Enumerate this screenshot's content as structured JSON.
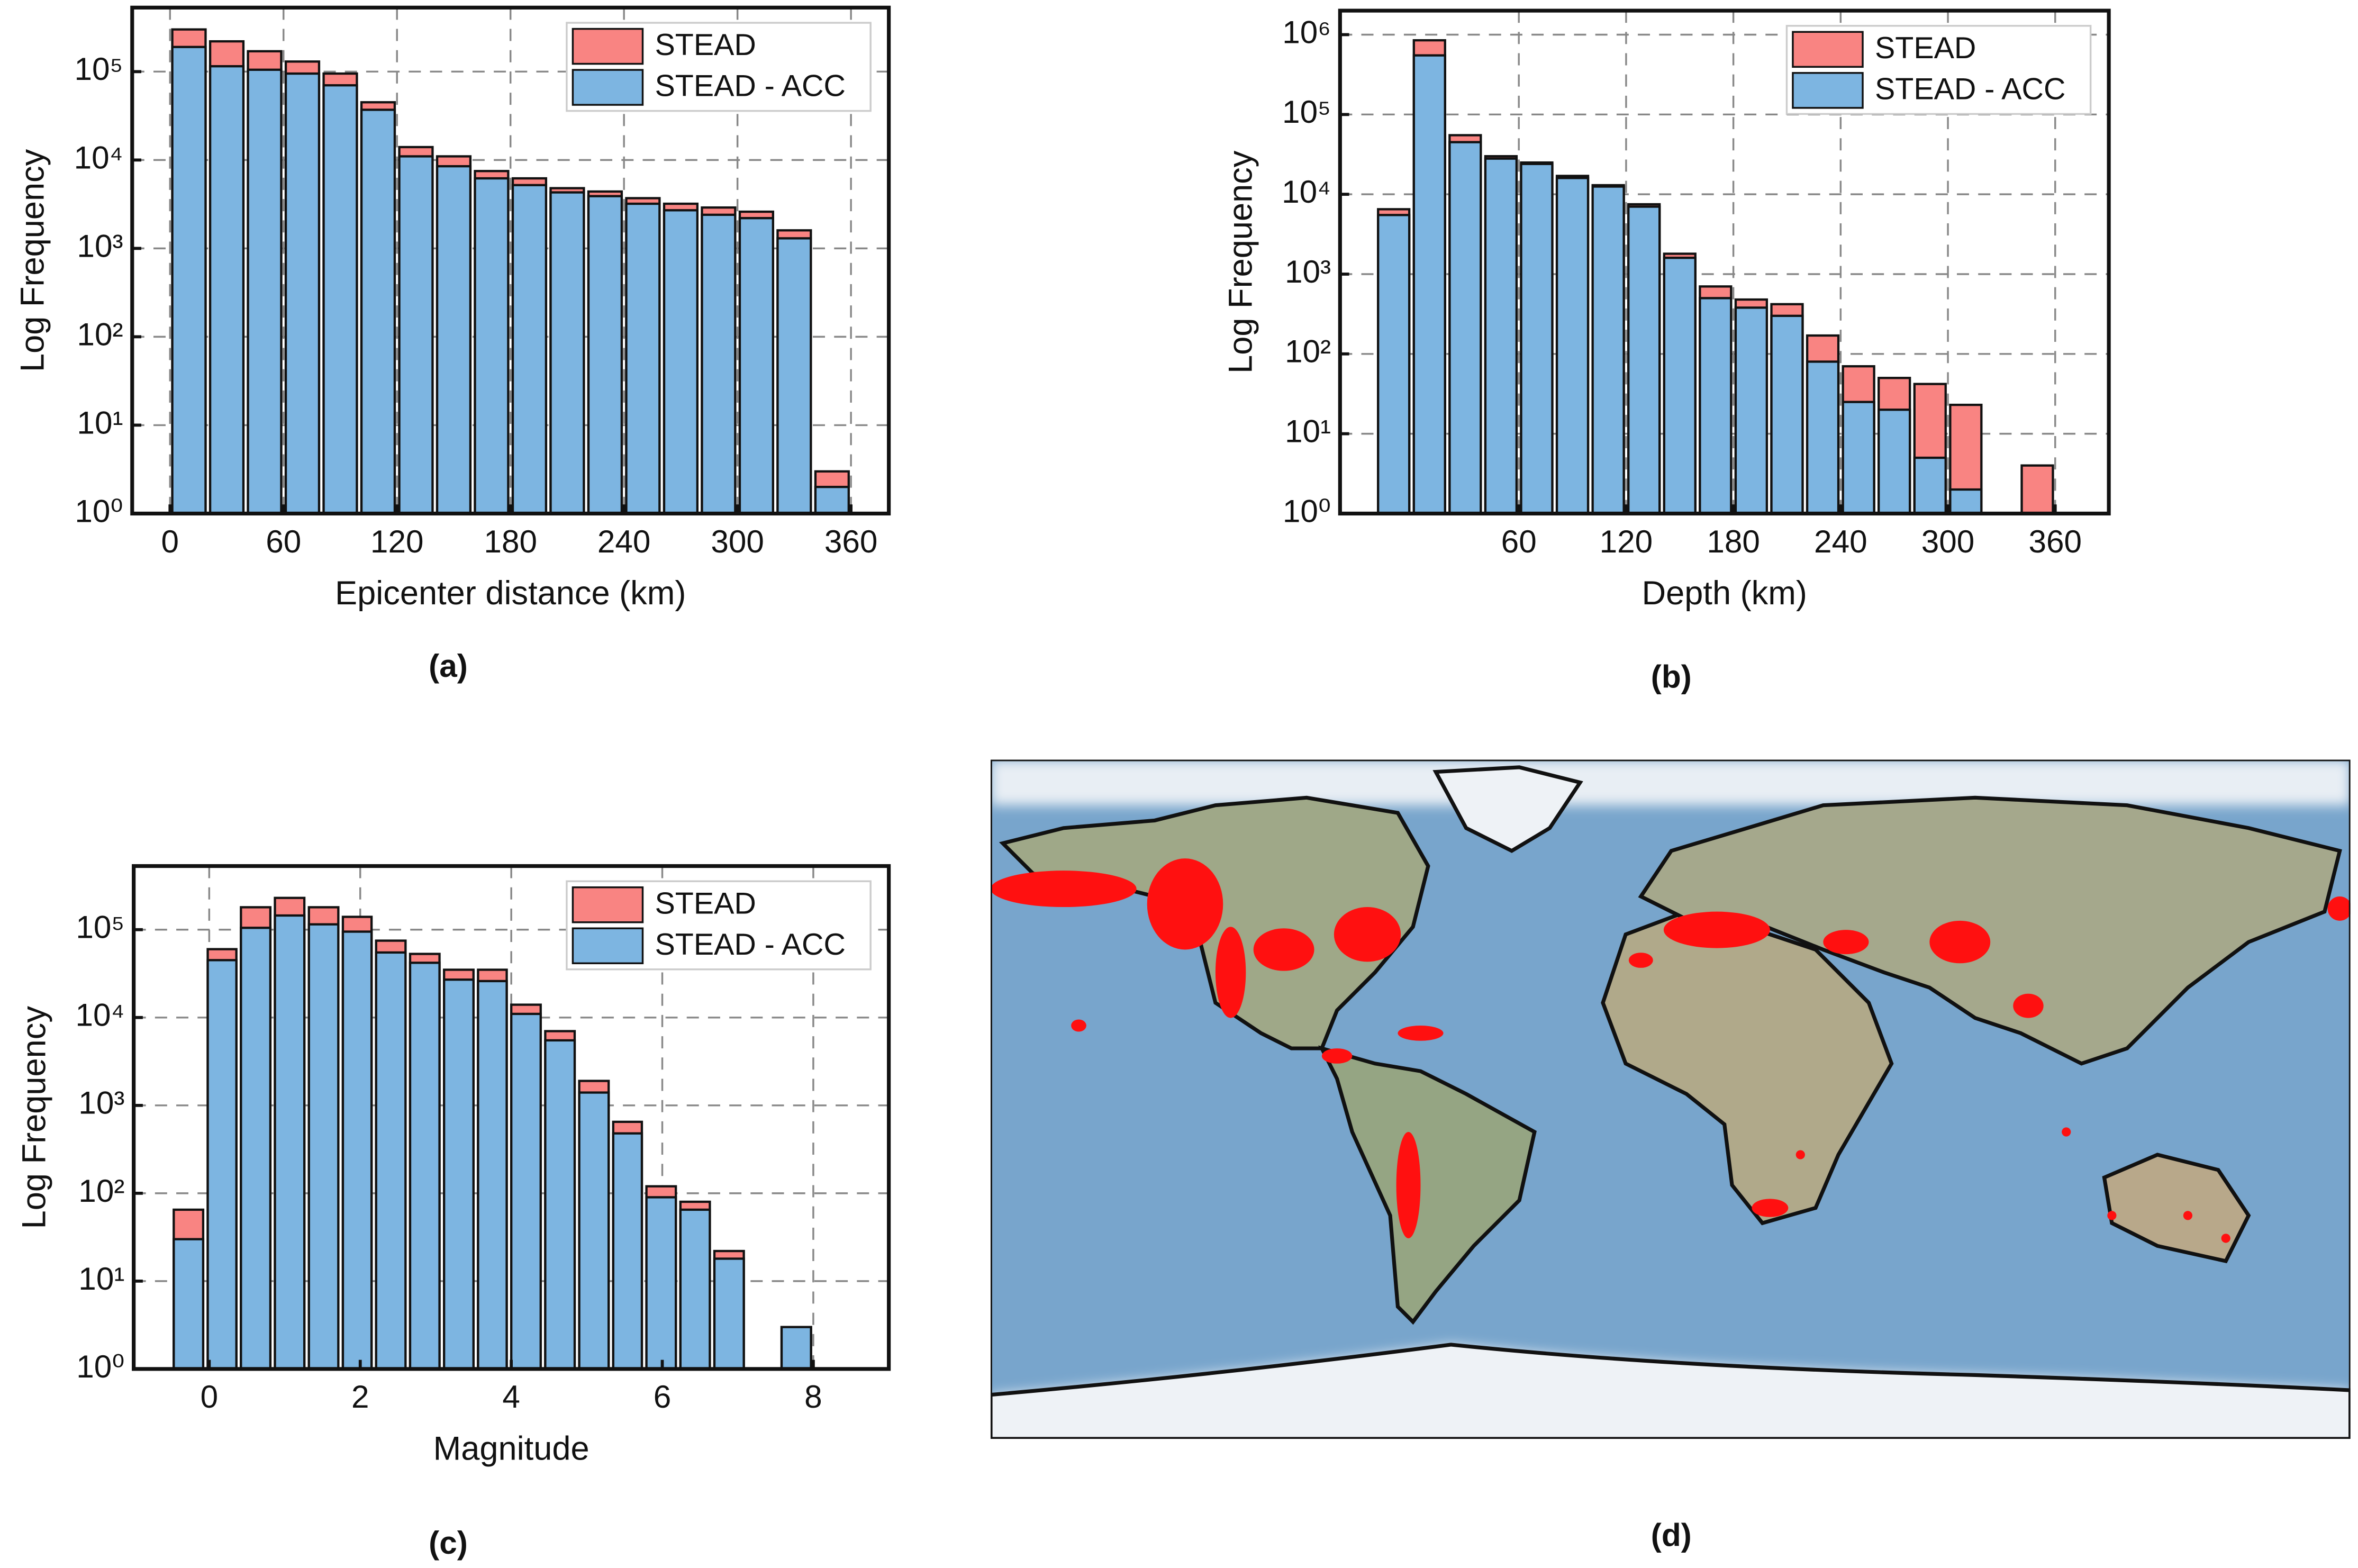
{
  "chart_data": [
    {
      "type": "histogram",
      "caption": "(a)",
      "xlabel": "Epicenter distance (km)",
      "ylabel": "Log Frequency",
      "bins": [
        0,
        20,
        40,
        60,
        80,
        100,
        120,
        140,
        160,
        180,
        200,
        220,
        240,
        260,
        280,
        300,
        320,
        340,
        360
      ],
      "series": [
        {
          "name": "STEAD",
          "color": "#f98482",
          "values": [
            300000,
            220000,
            170000,
            130000,
            95000,
            45000,
            14000,
            11000,
            7500,
            6200,
            4800,
            4400,
            3700,
            3200,
            2900,
            2600,
            1600,
            3
          ]
        },
        {
          "name": "STEAD - ACC",
          "color": "#7db5e1",
          "values": [
            190000,
            115000,
            105000,
            95000,
            70000,
            37000,
            11000,
            8500,
            6200,
            5200,
            4300,
            3900,
            3200,
            2700,
            2400,
            2200,
            1300,
            2
          ]
        }
      ],
      "xlim": [
        -20,
        380
      ],
      "xticks": [
        0,
        60,
        120,
        180,
        240,
        300,
        360
      ],
      "ylim": [
        1,
        530000
      ],
      "log_y": true,
      "yticks": [
        {
          "value": 1,
          "label": "10⁰"
        },
        {
          "value": 10,
          "label": "10¹"
        },
        {
          "value": 100,
          "label": "10²"
        },
        {
          "value": 1000,
          "label": "10³"
        },
        {
          "value": 10000,
          "label": "10⁴"
        },
        {
          "value": 100000,
          "label": "10⁵"
        }
      ],
      "grid": true,
      "legend": "upper right"
    },
    {
      "type": "histogram",
      "caption": "(b)",
      "xlabel": "Depth (km)",
      "ylabel": "Log Frequency",
      "bins": [
        -20,
        0,
        20,
        40,
        60,
        80,
        100,
        120,
        140,
        160,
        180,
        200,
        220,
        240,
        260,
        280,
        300,
        320,
        340,
        360
      ],
      "series": [
        {
          "name": "STEAD",
          "color": "#f98482",
          "values": [
            6500,
            850000,
            55000,
            30000,
            25000,
            17000,
            13000,
            7500,
            1800,
            700,
            480,
            420,
            170,
            70,
            50,
            42,
            23,
            null,
            4
          ]
        },
        {
          "name": "STEAD - ACC",
          "color": "#7db5e1",
          "values": [
            5500,
            550000,
            45000,
            28000,
            24000,
            16000,
            12500,
            7000,
            1600,
            500,
            380,
            300,
            80,
            25,
            20,
            5,
            2,
            null,
            null
          ]
        }
      ],
      "xlim": [
        -40,
        390
      ],
      "xticks": [
        60,
        120,
        180,
        240,
        300,
        360
      ],
      "ylim": [
        1,
        2000000
      ],
      "log_y": true,
      "yticks": [
        {
          "value": 1,
          "label": "10⁰"
        },
        {
          "value": 10,
          "label": "10¹"
        },
        {
          "value": 100,
          "label": "10²"
        },
        {
          "value": 1000,
          "label": "10³"
        },
        {
          "value": 10000,
          "label": "10⁴"
        },
        {
          "value": 100000,
          "label": "10⁵"
        },
        {
          "value": 1000000,
          "label": "10⁶"
        }
      ],
      "grid": true,
      "legend": "upper right"
    },
    {
      "type": "histogram",
      "caption": "(c)",
      "xlabel": "Magnitude",
      "ylabel": "Log Frequency",
      "bins": [
        -0.5,
        -0.05,
        0.39,
        0.84,
        1.29,
        1.74,
        2.18,
        2.63,
        3.08,
        3.53,
        3.97,
        4.42,
        4.87,
        5.32,
        5.76,
        6.21,
        6.66,
        7.11,
        7.55,
        8.0
      ],
      "series": [
        {
          "name": "STEAD",
          "color": "#f98482",
          "values": [
            65,
            60000,
            180000,
            230000,
            180000,
            140000,
            75000,
            53000,
            35000,
            35000,
            14000,
            7000,
            1900,
            650,
            120,
            80,
            22,
            null,
            3
          ]
        },
        {
          "name": "STEAD - ACC",
          "color": "#7db5e1",
          "values": [
            30,
            45000,
            105000,
            145000,
            115000,
            95000,
            55000,
            42000,
            27000,
            26000,
            11000,
            5500,
            1400,
            480,
            90,
            65,
            18,
            null,
            3
          ]
        }
      ],
      "xlim": [
        -1,
        9
      ],
      "xticks": [
        0,
        2,
        4,
        6,
        8
      ],
      "ylim": [
        1,
        530000
      ],
      "log_y": true,
      "yticks": [
        {
          "value": 1,
          "label": "10⁰"
        },
        {
          "value": 10,
          "label": "10¹"
        },
        {
          "value": 100,
          "label": "10²"
        },
        {
          "value": 1000,
          "label": "10³"
        },
        {
          "value": 10000,
          "label": "10⁴"
        },
        {
          "value": 100000,
          "label": "10⁵"
        }
      ],
      "grid": true,
      "legend": "upper right"
    }
  ],
  "map": {
    "caption": "(d)"
  }
}
